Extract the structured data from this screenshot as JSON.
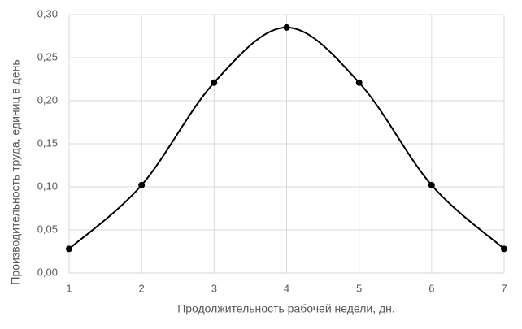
{
  "chart_data": {
    "type": "line",
    "xlabel": "Продолжительность рабочей недели, дн.",
    "ylabel": "Производительность труда, единиц в день",
    "x": [
      1,
      2,
      3,
      4,
      5,
      6,
      7
    ],
    "values": [
      0.028,
      0.102,
      0.221,
      0.285,
      0.221,
      0.102,
      0.028
    ],
    "color": "#000000",
    "smooth": true,
    "markers": true,
    "grid": true,
    "xlim": [
      1,
      7
    ],
    "xticks": [
      1,
      2,
      3,
      4,
      5,
      6,
      7
    ],
    "ylim": [
      0,
      0.3
    ],
    "yticks": [
      {
        "value": 0,
        "label": "0,00"
      },
      {
        "value": 0.05,
        "label": "0,05"
      },
      {
        "value": 0.1,
        "label": "0,10"
      },
      {
        "value": 0.15,
        "label": "0,15"
      },
      {
        "value": 0.2,
        "label": "0,20"
      },
      {
        "value": 0.25,
        "label": "0,25"
      },
      {
        "value": 0.3,
        "label": "0,30"
      }
    ]
  }
}
